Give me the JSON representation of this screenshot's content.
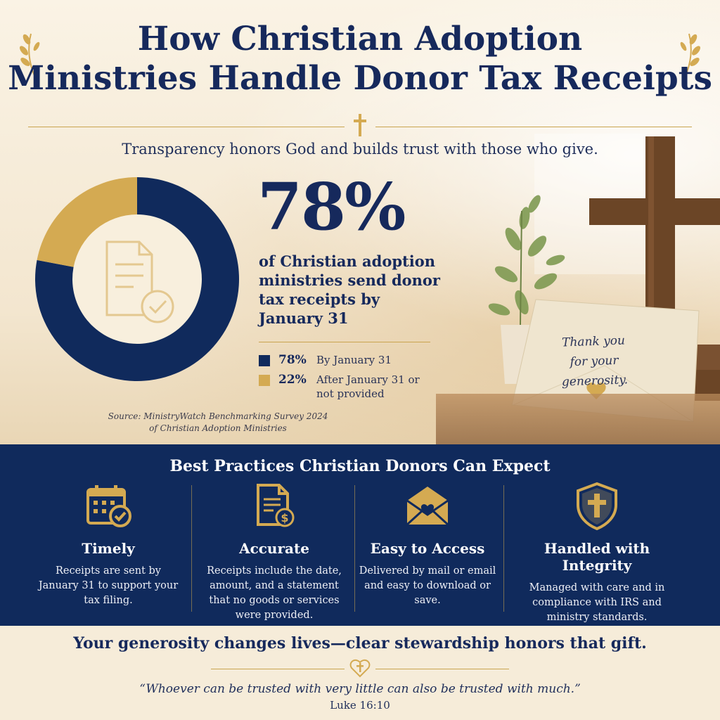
{
  "header": {
    "title_line1": "How Christian Adoption",
    "title_line2": "Ministries Handle Donor Tax Receipts",
    "subtitle": "Transparency honors God and builds trust with those who give."
  },
  "stat": {
    "big_value": "78%",
    "description": "of Christian adoption ministries send donor tax receipts by January 31"
  },
  "legend": [
    {
      "value": "78%",
      "label": "By January 31",
      "color": "#102a5c"
    },
    {
      "value": "22%",
      "label": "After January 31 or not provided",
      "color": "#d4aa52"
    }
  ],
  "source": {
    "line1": "Source: MinistryWatch Benchmarking Survey 2024",
    "line2": "of Christian Adoption Ministries"
  },
  "card": {
    "line1": "Thank you",
    "line2": "for your generosity."
  },
  "chart_data": {
    "type": "pie",
    "categories": [
      "By January 31",
      "After January 31 or not provided"
    ],
    "values": [
      78,
      22
    ],
    "colors": [
      "#102a5c",
      "#d4aa52"
    ],
    "title": "",
    "donut": true
  },
  "practices": {
    "heading": "Best Practices Christian Donors Can Expect",
    "items": [
      {
        "title": "Timely",
        "desc": "Receipts are sent by January 31 to support your tax filing.",
        "icon": "calendar-check-icon"
      },
      {
        "title": "Accurate",
        "desc": "Receipts include the date, amount, and a statement that no goods or services were provided.",
        "icon": "document-dollar-icon"
      },
      {
        "title": "Easy to Access",
        "desc": "Delivered by mail or email and easy to download or save.",
        "icon": "envelope-heart-icon"
      },
      {
        "title": "Handled with Integrity",
        "desc": "Managed with care and in compliance with IRS and ministry standards.",
        "icon": "shield-cross-icon"
      }
    ]
  },
  "footer": {
    "closing": "Your generosity changes lives—clear stewardship honors that gift.",
    "quote": "“Whoever can be trusted with very little can also be trusted with much.”",
    "reference": "Luke 16:10"
  },
  "colors": {
    "navy": "#102a5c",
    "gold": "#d4aa52",
    "cream": "#f6ecd9"
  }
}
